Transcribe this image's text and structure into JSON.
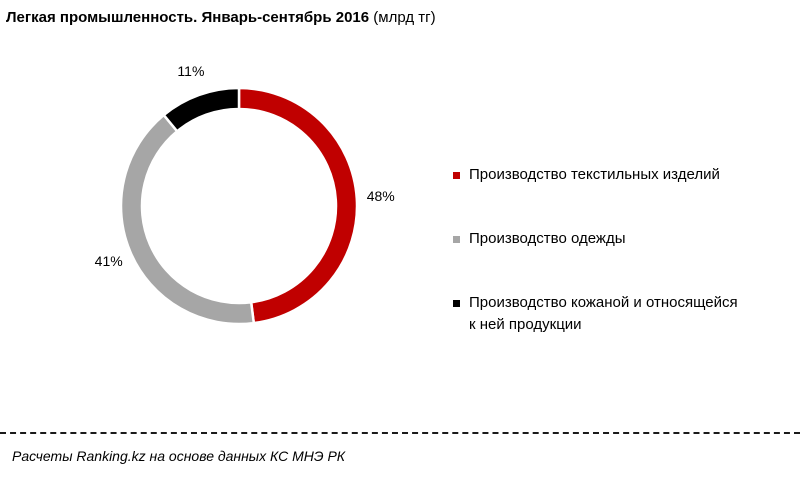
{
  "title": {
    "main": "Легкая промышленность. Январь-сентябрь 2016",
    "unit": "(млрд тг)"
  },
  "chart_data": {
    "type": "pie",
    "variant": "donut",
    "title": "Легкая промышленность. Январь-сентябрь 2016 (млрд тг)",
    "slices": [
      {
        "name": "Производство текстильных изделий",
        "value": 48,
        "label": "48%",
        "color": "#c00000"
      },
      {
        "name": "Производство одежды",
        "value": 41,
        "label": "41%",
        "color": "#a6a6a6"
      },
      {
        "name": "Производство кожаной и относящейся к ней продукции",
        "value": 11,
        "label": "11%",
        "color": "#000000"
      }
    ],
    "legend_position": "right"
  },
  "legend": {
    "items": [
      {
        "line1": "Производство текстильных изделий",
        "line2": "",
        "color": "#c00000"
      },
      {
        "line1": "Производство одежды",
        "line2": "",
        "color": "#a6a6a6"
      },
      {
        "line1": "Производство кожаной и относящейся",
        "line2": "к ней продукции",
        "color": "#000000"
      }
    ]
  },
  "source": "Расчеты Ranking.kz на основе данных КС МНЭ РК"
}
